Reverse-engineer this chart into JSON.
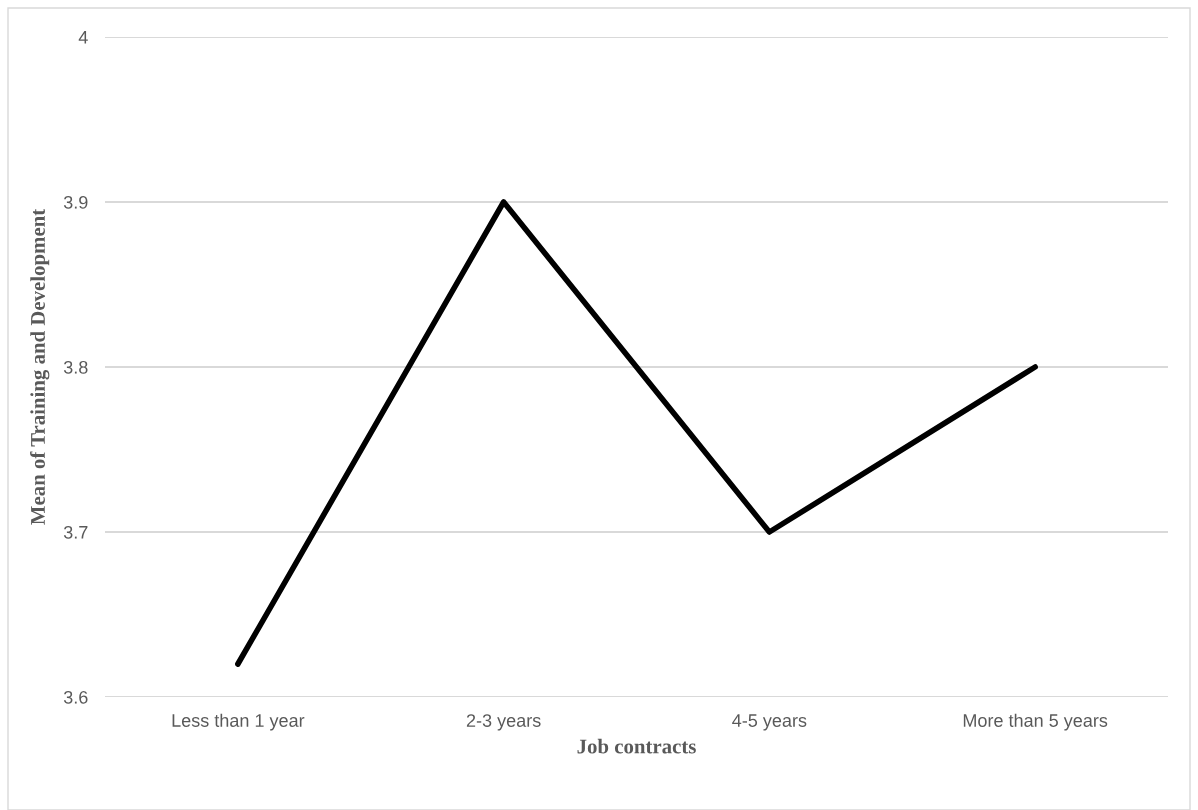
{
  "chart_data": {
    "type": "line",
    "xlabel": "Job contracts",
    "ylabel": "Mean of Training and Development",
    "categories": [
      "Less than 1 year",
      "2-3 years",
      "4-5 years",
      "More than 5 years"
    ],
    "series": [
      {
        "color": "#000000",
        "values": [
          3.62,
          3.9,
          3.7,
          3.8
        ]
      }
    ],
    "ylim": [
      3.6,
      4
    ],
    "yticks": [
      3.6,
      3.7,
      3.8,
      3.9,
      4
    ],
    "grid": "y",
    "marker": "none",
    "line_style": "solid"
  }
}
